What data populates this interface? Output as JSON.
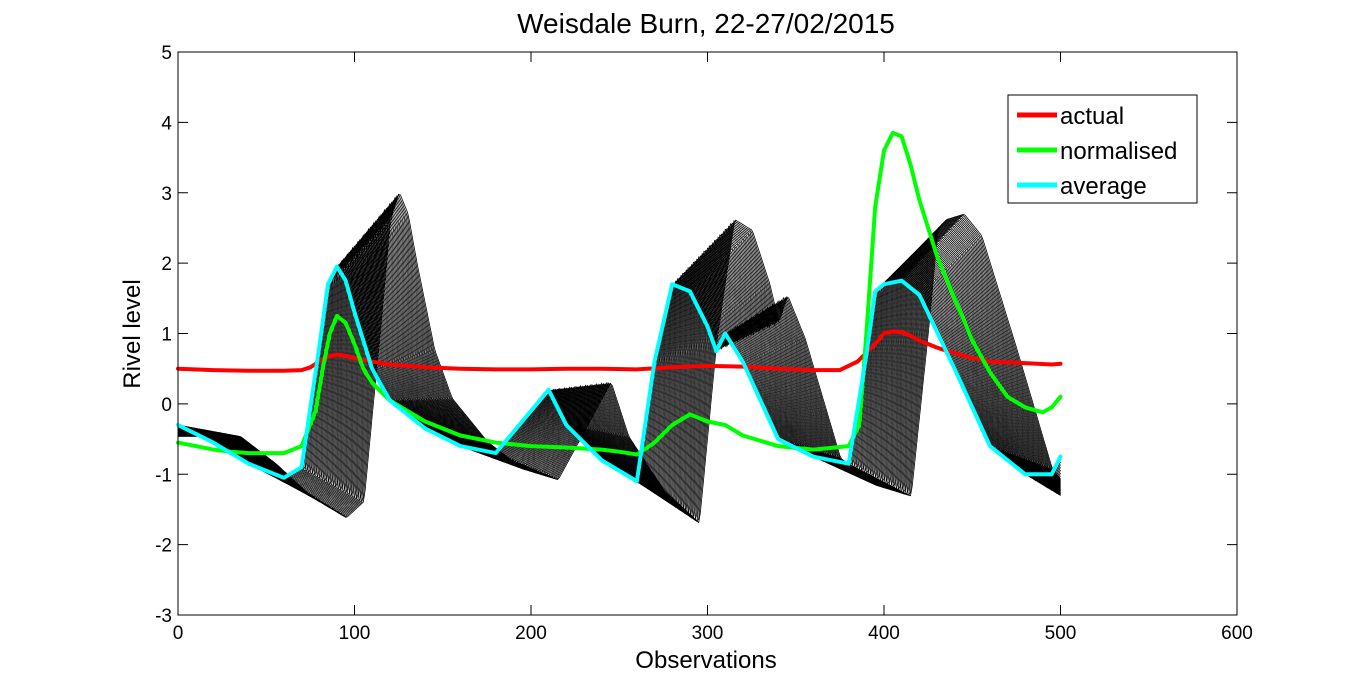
{
  "chart_data": {
    "type": "line",
    "title": "Weisdale Burn, 22-27/02/2015",
    "xlabel": "Observations",
    "ylabel": "Rivel level",
    "xlim": [
      0,
      600
    ],
    "ylim": [
      -3,
      5
    ],
    "xticks": [
      0,
      100,
      200,
      300,
      400,
      500,
      600
    ],
    "yticks": [
      -3,
      -2,
      -1,
      0,
      1,
      2,
      3,
      4,
      5
    ],
    "xtick_labels": [
      "0",
      "100",
      "200",
      "300",
      "400",
      "500",
      "600"
    ],
    "ytick_labels": [
      "-3",
      "-2",
      "-1",
      "0",
      "1",
      "2",
      "3",
      "4",
      "5"
    ],
    "grid": false,
    "legend_position": "top-right",
    "series": [
      {
        "name": "actual",
        "color": "#ff0000",
        "x": [
          0,
          20,
          40,
          60,
          70,
          75,
          80,
          85,
          90,
          95,
          100,
          110,
          120,
          140,
          160,
          180,
          200,
          220,
          240,
          260,
          280,
          300,
          320,
          340,
          360,
          375,
          385,
          395,
          400,
          405,
          410,
          415,
          420,
          430,
          440,
          450,
          460,
          480,
          495,
          500
        ],
        "y": [
          0.5,
          0.48,
          0.47,
          0.47,
          0.48,
          0.52,
          0.6,
          0.67,
          0.7,
          0.68,
          0.65,
          0.6,
          0.56,
          0.52,
          0.5,
          0.49,
          0.49,
          0.5,
          0.5,
          0.49,
          0.52,
          0.54,
          0.53,
          0.5,
          0.48,
          0.48,
          0.6,
          0.85,
          1.0,
          1.03,
          1.02,
          0.97,
          0.9,
          0.8,
          0.72,
          0.65,
          0.6,
          0.58,
          0.56,
          0.57
        ]
      },
      {
        "name": "normalised",
        "color": "#00ff00",
        "x": [
          0,
          10,
          20,
          30,
          40,
          50,
          60,
          70,
          78,
          82,
          86,
          90,
          95,
          100,
          105,
          110,
          120,
          140,
          160,
          180,
          200,
          220,
          240,
          250,
          260,
          270,
          280,
          290,
          300,
          310,
          320,
          340,
          360,
          380,
          386,
          390,
          395,
          400,
          405,
          410,
          415,
          420,
          430,
          440,
          450,
          460,
          470,
          480,
          490,
          495,
          500
        ],
        "y": [
          -0.55,
          -0.6,
          -0.65,
          -0.68,
          -0.7,
          -0.7,
          -0.7,
          -0.6,
          -0.1,
          0.5,
          1.0,
          1.25,
          1.15,
          0.85,
          0.5,
          0.3,
          0.05,
          -0.25,
          -0.45,
          -0.55,
          -0.6,
          -0.62,
          -0.65,
          -0.68,
          -0.72,
          -0.55,
          -0.3,
          -0.15,
          -0.25,
          -0.3,
          -0.45,
          -0.6,
          -0.65,
          -0.6,
          -0.3,
          1.0,
          2.8,
          3.6,
          3.85,
          3.8,
          3.4,
          2.9,
          2.1,
          1.5,
          0.9,
          0.45,
          0.1,
          -0.05,
          -0.12,
          -0.05,
          0.1
        ]
      },
      {
        "name": "average",
        "color": "#00ffff",
        "x": [
          0,
          20,
          40,
          60,
          70,
          80,
          85,
          90,
          95,
          100,
          110,
          120,
          140,
          160,
          180,
          200,
          210,
          220,
          240,
          260,
          270,
          280,
          290,
          300,
          305,
          310,
          320,
          340,
          360,
          380,
          390,
          395,
          400,
          410,
          420,
          440,
          460,
          480,
          495,
          500
        ],
        "y": [
          -0.3,
          -0.55,
          -0.85,
          -1.05,
          -0.9,
          0.8,
          1.7,
          1.95,
          1.75,
          1.3,
          0.5,
          0.05,
          -0.35,
          -0.6,
          -0.7,
          -0.1,
          0.2,
          -0.3,
          -0.8,
          -1.1,
          0.6,
          1.7,
          1.6,
          1.1,
          0.75,
          1.0,
          0.6,
          -0.5,
          -0.75,
          -0.85,
          0.7,
          1.6,
          1.7,
          1.75,
          1.55,
          0.5,
          -0.6,
          -1.0,
          -1.0,
          -0.75
        ]
      }
    ],
    "ensemble": {
      "color": "#000000",
      "count": 60,
      "shift_step": 0.6,
      "amplitude_spread": 0.55,
      "x": [
        0,
        20,
        40,
        60,
        70,
        80,
        85,
        90,
        95,
        100,
        110,
        120,
        140,
        160,
        180,
        200,
        210,
        220,
        240,
        260,
        270,
        280,
        290,
        300,
        305,
        310,
        320,
        340,
        360,
        380,
        390,
        395,
        400,
        410,
        420,
        440,
        460,
        480,
        495,
        500
      ],
      "y": [
        -0.3,
        -0.55,
        -0.85,
        -1.05,
        -0.9,
        0.8,
        1.7,
        1.95,
        1.75,
        1.3,
        0.5,
        0.05,
        -0.35,
        -0.6,
        -0.7,
        -0.1,
        0.2,
        -0.3,
        -0.8,
        -1.1,
        0.6,
        1.7,
        1.6,
        1.1,
        0.75,
        1.0,
        0.6,
        -0.5,
        -0.75,
        -0.85,
        0.7,
        1.6,
        1.7,
        1.75,
        1.55,
        0.5,
        -0.6,
        -1.0,
        -1.0,
        -0.75
      ]
    }
  }
}
